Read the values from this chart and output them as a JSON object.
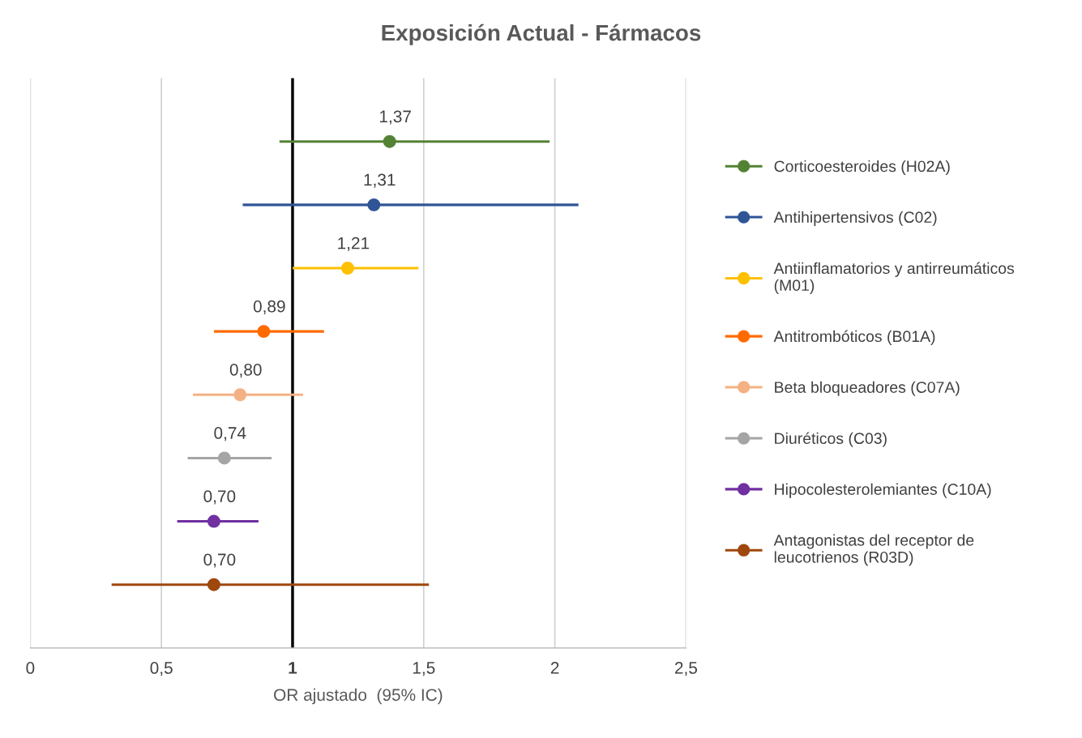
{
  "chart_data": {
    "type": "scatter",
    "orientation": "horizontal",
    "title": "Exposición Actual - Fármacos",
    "xlabel": "OR ajustado  (95% IC)",
    "categories": [
      null,
      null,
      null,
      null,
      null,
      null,
      null,
      null
    ],
    "xlim": [
      0,
      2.5
    ],
    "xticks": [
      0,
      {
        "value": 0.5,
        "label": "0,5"
      },
      1,
      {
        "value": 1.5,
        "label": "1,5"
      },
      2,
      {
        "value": 2.5,
        "label": "2,5"
      }
    ],
    "tick_labels": "x",
    "grid": "x",
    "legend": "right",
    "marker": "circle",
    "ref_lines": [
      {
        "axis": "x",
        "value": 1,
        "color": "#000000"
      }
    ],
    "series": [
      {
        "name": "Corticoesteroides (H02A)",
        "color": "#548235",
        "values": [
          1.37,
          null,
          null,
          null,
          null,
          null,
          null,
          null
        ],
        "errors": [
          [
            0.95,
            1.98
          ],
          null,
          null,
          null,
          null,
          null,
          null,
          null
        ],
        "value_labels": [
          "1,37",
          null,
          null,
          null,
          null,
          null,
          null,
          null
        ]
      },
      {
        "name": "Antihipertensivos (C02)",
        "color": "#2f5597",
        "values": [
          null,
          1.31,
          null,
          null,
          null,
          null,
          null,
          null
        ],
        "errors": [
          null,
          [
            0.81,
            2.09
          ],
          null,
          null,
          null,
          null,
          null,
          null
        ],
        "value_labels": [
          null,
          "1,31",
          null,
          null,
          null,
          null,
          null,
          null
        ]
      },
      {
        "name": "Antiinflamatorios y antirreumáticos (M01)",
        "color": "#ffc000",
        "values": [
          null,
          null,
          1.21,
          null,
          null,
          null,
          null,
          null
        ],
        "errors": [
          null,
          null,
          [
            1.0,
            1.48
          ],
          null,
          null,
          null,
          null,
          null
        ],
        "value_labels": [
          null,
          null,
          "1,21",
          null,
          null,
          null,
          null,
          null
        ]
      },
      {
        "name": "Antitrombóticos (B01A)",
        "color": "#ff6a00",
        "values": [
          null,
          null,
          null,
          0.89,
          null,
          null,
          null,
          null
        ],
        "errors": [
          null,
          null,
          null,
          [
            0.7,
            1.12
          ],
          null,
          null,
          null,
          null
        ],
        "value_labels": [
          null,
          null,
          null,
          "0,89",
          null,
          null,
          null,
          null
        ]
      },
      {
        "name": "Beta bloqueadores (C07A)",
        "color": "#f4b183",
        "values": [
          null,
          null,
          null,
          null,
          0.8,
          null,
          null,
          null
        ],
        "errors": [
          null,
          null,
          null,
          null,
          [
            0.62,
            1.04
          ],
          null,
          null,
          null
        ],
        "value_labels": [
          null,
          null,
          null,
          null,
          "0,80",
          null,
          null,
          null
        ]
      },
      {
        "name": "Diuréticos (C03)",
        "color": "#a5a5a5",
        "values": [
          null,
          null,
          null,
          null,
          null,
          0.74,
          null,
          null
        ],
        "errors": [
          null,
          null,
          null,
          null,
          null,
          [
            0.6,
            0.92
          ],
          null,
          null
        ],
        "value_labels": [
          null,
          null,
          null,
          null,
          null,
          "0,74",
          null,
          null
        ]
      },
      {
        "name": "Hipocolesterolemiantes (C10A)",
        "color": "#7030a0",
        "values": [
          null,
          null,
          null,
          null,
          null,
          null,
          0.7,
          null
        ],
        "errors": [
          null,
          null,
          null,
          null,
          null,
          null,
          [
            0.56,
            0.87
          ],
          null
        ],
        "value_labels": [
          null,
          null,
          null,
          null,
          null,
          null,
          "0,70",
          null
        ]
      },
      {
        "name": "Antagonistas del receptor de leucotrienos (R03D)",
        "color": "#9e480e",
        "values": [
          null,
          null,
          null,
          null,
          null,
          null,
          null,
          0.7
        ],
        "errors": [
          null,
          null,
          null,
          null,
          null,
          null,
          null,
          [
            0.31,
            1.52
          ]
        ],
        "value_labels": [
          null,
          null,
          null,
          null,
          null,
          null,
          null,
          "0,70"
        ]
      }
    ]
  }
}
